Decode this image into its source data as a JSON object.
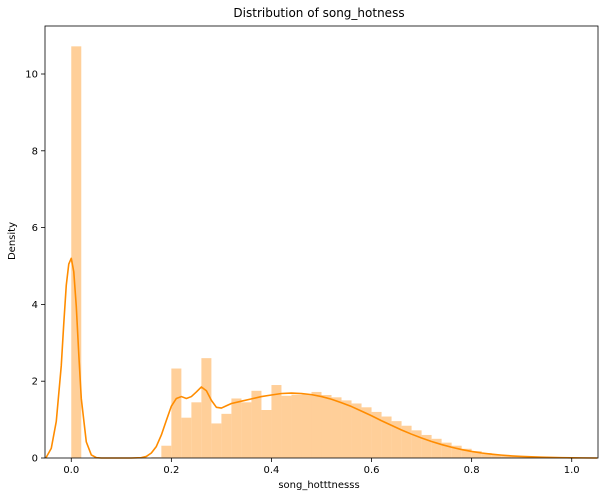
{
  "chart_data": {
    "type": "bar",
    "title": "Distribution of song_hotness",
    "xlabel": "song_hotttnesss",
    "ylabel": "Density",
    "xlim": [
      -0.0525,
      1.0525
    ],
    "ylim": [
      0,
      11.25
    ],
    "xticks": [
      0.0,
      0.2,
      0.4,
      0.6,
      0.8,
      1.0
    ],
    "xtick_labels": [
      "0.0",
      "0.2",
      "0.4",
      "0.6",
      "0.8",
      "1.0"
    ],
    "yticks": [
      0,
      2,
      4,
      6,
      8,
      10
    ],
    "ytick_labels": [
      "0",
      "2",
      "4",
      "6",
      "8",
      "10"
    ],
    "grid": false,
    "histogram": {
      "name": "",
      "color": "#ffcf99",
      "bin_width": 0.02,
      "bin_starts": [
        0.0,
        0.02,
        0.04,
        0.06,
        0.08,
        0.1,
        0.12,
        0.14,
        0.16,
        0.18,
        0.2,
        0.22,
        0.24,
        0.26,
        0.28,
        0.3,
        0.32,
        0.34,
        0.36,
        0.38,
        0.4,
        0.42,
        0.44,
        0.46,
        0.48,
        0.5,
        0.52,
        0.54,
        0.56,
        0.58,
        0.6,
        0.62,
        0.64,
        0.66,
        0.68,
        0.7,
        0.72,
        0.74,
        0.76,
        0.78,
        0.8,
        0.82,
        0.84,
        0.86,
        0.88,
        0.9,
        0.92,
        0.94,
        0.96,
        0.98
      ],
      "densities": [
        10.72,
        0.0,
        0.0,
        0.0,
        0.0,
        0.0,
        0.0,
        0.0,
        0.02,
        0.32,
        2.33,
        1.05,
        1.45,
        2.6,
        0.9,
        1.15,
        1.55,
        1.45,
        1.75,
        1.25,
        1.9,
        1.62,
        1.65,
        1.66,
        1.72,
        1.64,
        1.58,
        1.5,
        1.42,
        1.32,
        1.2,
        1.08,
        0.96,
        0.84,
        0.72,
        0.6,
        0.5,
        0.4,
        0.32,
        0.24,
        0.18,
        0.13,
        0.09,
        0.06,
        0.04,
        0.03,
        0.02,
        0.01,
        0.01,
        0.0
      ]
    },
    "kde": {
      "name": "",
      "color": "#ff8c00",
      "x": [
        -0.05,
        -0.04,
        -0.03,
        -0.02,
        -0.015,
        -0.01,
        -0.005,
        0.0,
        0.005,
        0.01,
        0.015,
        0.02,
        0.03,
        0.04,
        0.05,
        0.06,
        0.08,
        0.1,
        0.12,
        0.14,
        0.15,
        0.16,
        0.17,
        0.18,
        0.19,
        0.2,
        0.21,
        0.22,
        0.23,
        0.24,
        0.25,
        0.26,
        0.27,
        0.28,
        0.29,
        0.3,
        0.31,
        0.32,
        0.34,
        0.36,
        0.38,
        0.4,
        0.42,
        0.44,
        0.46,
        0.48,
        0.5,
        0.52,
        0.54,
        0.56,
        0.58,
        0.6,
        0.62,
        0.64,
        0.66,
        0.68,
        0.7,
        0.72,
        0.74,
        0.76,
        0.78,
        0.8,
        0.82,
        0.84,
        0.86,
        0.88,
        0.9,
        0.92,
        0.94,
        0.96,
        0.98,
        1.0,
        1.02,
        1.05
      ],
      "y": [
        0.02,
        0.25,
        0.95,
        2.4,
        3.5,
        4.5,
        5.05,
        5.2,
        4.85,
        3.95,
        2.7,
        1.55,
        0.42,
        0.08,
        0.01,
        0.0,
        0.0,
        0.0,
        0.0,
        0.01,
        0.04,
        0.13,
        0.3,
        0.6,
        0.98,
        1.35,
        1.55,
        1.6,
        1.55,
        1.6,
        1.72,
        1.85,
        1.75,
        1.5,
        1.32,
        1.3,
        1.36,
        1.42,
        1.48,
        1.54,
        1.6,
        1.64,
        1.68,
        1.69,
        1.68,
        1.65,
        1.6,
        1.53,
        1.44,
        1.34,
        1.22,
        1.1,
        0.97,
        0.85,
        0.73,
        0.62,
        0.52,
        0.43,
        0.35,
        0.28,
        0.22,
        0.17,
        0.13,
        0.1,
        0.075,
        0.055,
        0.04,
        0.03,
        0.02,
        0.014,
        0.01,
        0.006,
        0.003,
        0.0
      ]
    }
  }
}
